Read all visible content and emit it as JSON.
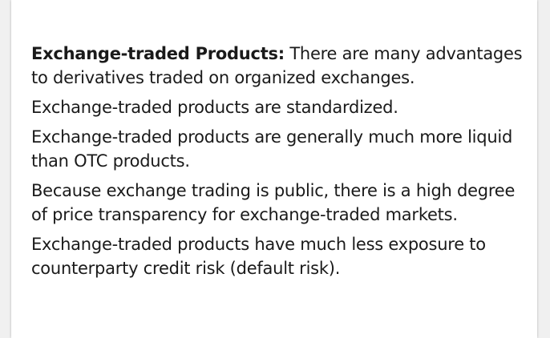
{
  "slide": {
    "intro": {
      "bold_lead": "Exchange-traded Products:",
      "text": "There are many advantages to derivatives traded on organized exchanges."
    },
    "points": [
      "Exchange-traded products are standardized.",
      "Exchange-traded products are generally much more liquid than OTC products.",
      "Because exchange trading is public, there is a high degree of price transparency for exchange-traded markets.",
      "Exchange-traded products have much less exposure to counterparty credit risk (default risk)."
    ]
  }
}
